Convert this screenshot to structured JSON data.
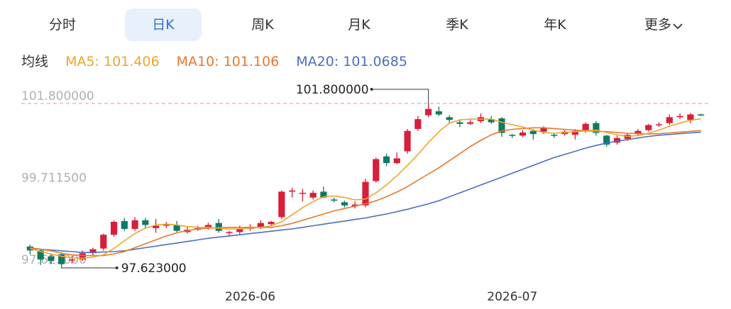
{
  "tabs": [
    {
      "label": "分时",
      "active": false
    },
    {
      "label": "日K",
      "active": true
    },
    {
      "label": "周K",
      "active": false
    },
    {
      "label": "月K",
      "active": false
    },
    {
      "label": "季K",
      "active": false
    },
    {
      "label": "年K",
      "active": false
    },
    {
      "label": "更多",
      "active": false
    }
  ],
  "ma": {
    "title": "均线",
    "ma5": "MA5: 101.406",
    "ma10": "MA10: 101.106",
    "ma20": "MA20: 101.0685"
  },
  "colors": {
    "up": "#d81e3a",
    "down": "#0f7a60",
    "ma5": "#f0a42c",
    "ma10": "#e8782e",
    "ma20": "#4b6fc0",
    "ref": "#f08a9a",
    "axis_text": "#b0b0b0"
  },
  "chart_data": {
    "type": "candlestick",
    "y_axis_labels": [
      "101.800000",
      "99.711500",
      "97.623000"
    ],
    "ylim": [
      97.623,
      101.8
    ],
    "x_axis_labels": [
      "2026-06",
      "2026-07"
    ],
    "max_annotation": "101.800000",
    "min_annotation": "97.623000",
    "candles": [
      [
        98.15,
        98.05,
        98.2,
        97.95
      ],
      [
        98.05,
        97.82,
        98.08,
        97.68
      ],
      [
        97.9,
        97.78,
        97.95,
        97.7
      ],
      [
        97.95,
        97.7,
        98.0,
        97.62
      ],
      [
        97.8,
        97.82,
        97.92,
        97.72
      ],
      [
        97.82,
        97.98,
        98.05,
        97.78
      ],
      [
        97.98,
        98.08,
        98.12,
        97.92
      ],
      [
        98.1,
        98.45,
        98.48,
        98.05
      ],
      [
        98.45,
        98.78,
        98.82,
        98.4
      ],
      [
        98.8,
        98.6,
        98.88,
        98.55
      ],
      [
        98.6,
        98.82,
        98.9,
        98.55
      ],
      [
        98.82,
        98.7,
        98.88,
        98.6
      ],
      [
        98.62,
        98.68,
        98.85,
        98.5
      ],
      [
        98.68,
        98.72,
        98.78,
        98.62
      ],
      [
        98.7,
        98.55,
        98.8,
        98.5
      ],
      [
        98.52,
        98.58,
        98.65,
        98.48
      ],
      [
        98.58,
        98.62,
        98.68,
        98.55
      ],
      [
        98.62,
        98.7,
        98.76,
        98.58
      ],
      [
        98.75,
        98.55,
        98.85,
        98.5
      ],
      [
        98.5,
        98.52,
        98.55,
        98.42
      ],
      [
        98.52,
        98.6,
        98.68,
        98.45
      ],
      [
        98.6,
        98.65,
        98.72,
        98.55
      ],
      [
        98.65,
        98.75,
        98.82,
        98.6
      ],
      [
        98.72,
        98.78,
        98.8,
        98.68
      ],
      [
        98.9,
        99.55,
        99.58,
        98.85
      ],
      [
        99.55,
        99.58,
        99.65,
        99.4
      ],
      [
        99.5,
        99.52,
        99.62,
        99.3
      ],
      [
        99.4,
        99.52,
        99.58,
        99.35
      ],
      [
        99.55,
        99.4,
        99.68,
        99.38
      ],
      [
        99.35,
        99.32,
        99.4,
        99.28
      ],
      [
        99.28,
        99.2,
        99.32,
        99.15
      ],
      [
        99.18,
        99.22,
        99.3,
        99.12
      ],
      [
        99.2,
        99.8,
        99.88,
        99.15
      ],
      [
        99.82,
        100.38,
        100.42,
        99.78
      ],
      [
        100.45,
        100.28,
        100.52,
        100.2
      ],
      [
        100.28,
        100.4,
        100.55,
        100.25
      ],
      [
        100.58,
        101.1,
        101.15,
        100.52
      ],
      [
        101.15,
        101.4,
        101.48,
        101.1
      ],
      [
        101.5,
        101.66,
        101.8,
        101.45
      ],
      [
        101.6,
        101.52,
        101.72,
        101.48
      ],
      [
        101.45,
        101.38,
        101.5,
        101.3
      ],
      [
        101.32,
        101.28,
        101.4,
        101.2
      ],
      [
        101.28,
        101.32,
        101.38,
        101.25
      ],
      [
        101.35,
        101.45,
        101.55,
        101.3
      ],
      [
        101.4,
        101.32,
        101.48,
        101.28
      ],
      [
        101.42,
        101.05,
        101.45,
        100.95
      ],
      [
        101.0,
        100.98,
        101.02,
        100.92
      ],
      [
        100.98,
        101.06,
        101.12,
        100.94
      ],
      [
        101.1,
        101.02,
        101.15,
        100.88
      ],
      [
        101.08,
        101.18,
        101.22,
        101.02
      ],
      [
        101.0,
        100.98,
        101.05,
        100.92
      ],
      [
        101.02,
        101.08,
        101.12,
        100.98
      ],
      [
        101.0,
        101.1,
        101.15,
        100.88
      ],
      [
        101.12,
        101.28,
        101.32,
        101.05
      ],
      [
        101.3,
        101.05,
        101.35,
        100.98
      ],
      [
        100.98,
        100.75,
        101.0,
        100.7
      ],
      [
        100.8,
        100.92,
        100.98,
        100.75
      ],
      [
        100.9,
        101.0,
        101.05,
        100.85
      ],
      [
        101.02,
        101.1,
        101.15,
        100.98
      ],
      [
        101.12,
        101.25,
        101.28,
        101.08
      ],
      [
        101.25,
        101.27,
        101.32,
        101.2
      ],
      [
        101.3,
        101.45,
        101.52,
        101.25
      ],
      [
        101.45,
        101.48,
        101.55,
        101.4
      ],
      [
        101.38,
        101.52,
        101.56,
        101.3
      ],
      [
        101.52,
        101.5,
        101.54,
        101.48
      ]
    ],
    "ma5": [
      98.1,
      98.02,
      97.96,
      97.9,
      97.86,
      97.85,
      97.88,
      97.94,
      98.1,
      98.3,
      98.48,
      98.62,
      98.7,
      98.72,
      98.7,
      98.66,
      98.64,
      98.64,
      98.62,
      98.6,
      98.6,
      98.62,
      98.64,
      98.68,
      98.78,
      98.96,
      99.14,
      99.3,
      99.42,
      99.44,
      99.4,
      99.34,
      99.36,
      99.52,
      99.72,
      99.96,
      100.22,
      100.5,
      100.8,
      101.08,
      101.3,
      101.38,
      101.4,
      101.4,
      101.4,
      101.32,
      101.26,
      101.2,
      101.12,
      101.06,
      101.04,
      101.06,
      101.08,
      101.1,
      101.12,
      101.06,
      101.0,
      100.96,
      100.98,
      101.04,
      101.12,
      101.22,
      101.3,
      101.37,
      101.41
    ],
    "ma10": [
      98.12,
      98.08,
      98.04,
      97.98,
      97.94,
      97.92,
      97.92,
      97.92,
      97.96,
      98.02,
      98.12,
      98.22,
      98.32,
      98.42,
      98.5,
      98.56,
      98.6,
      98.62,
      98.63,
      98.64,
      98.64,
      98.64,
      98.64,
      98.64,
      98.68,
      98.74,
      98.82,
      98.9,
      98.98,
      99.06,
      99.12,
      99.18,
      99.24,
      99.32,
      99.42,
      99.54,
      99.68,
      99.84,
      100.0,
      100.16,
      100.34,
      100.52,
      100.7,
      100.86,
      101.0,
      101.1,
      101.14,
      101.16,
      101.18,
      101.18,
      101.16,
      101.14,
      101.12,
      101.1,
      101.09,
      101.08,
      101.06,
      101.04,
      101.03,
      101.02,
      101.03,
      101.05,
      101.07,
      101.09,
      101.11
    ],
    "ma20": [
      98.1,
      98.08,
      98.06,
      98.04,
      98.02,
      98.0,
      98.0,
      98.01,
      98.02,
      98.04,
      98.08,
      98.12,
      98.16,
      98.2,
      98.24,
      98.28,
      98.32,
      98.36,
      98.39,
      98.42,
      98.45,
      98.48,
      98.51,
      98.54,
      98.57,
      98.6,
      98.64,
      98.68,
      98.72,
      98.76,
      98.8,
      98.84,
      98.88,
      98.93,
      98.98,
      99.04,
      99.1,
      99.17,
      99.24,
      99.32,
      99.42,
      99.52,
      99.62,
      99.72,
      99.82,
      99.92,
      100.02,
      100.12,
      100.22,
      100.32,
      100.42,
      100.5,
      100.58,
      100.66,
      100.73,
      100.79,
      100.84,
      100.88,
      100.92,
      100.96,
      100.99,
      101.01,
      101.03,
      101.05,
      101.07
    ]
  }
}
